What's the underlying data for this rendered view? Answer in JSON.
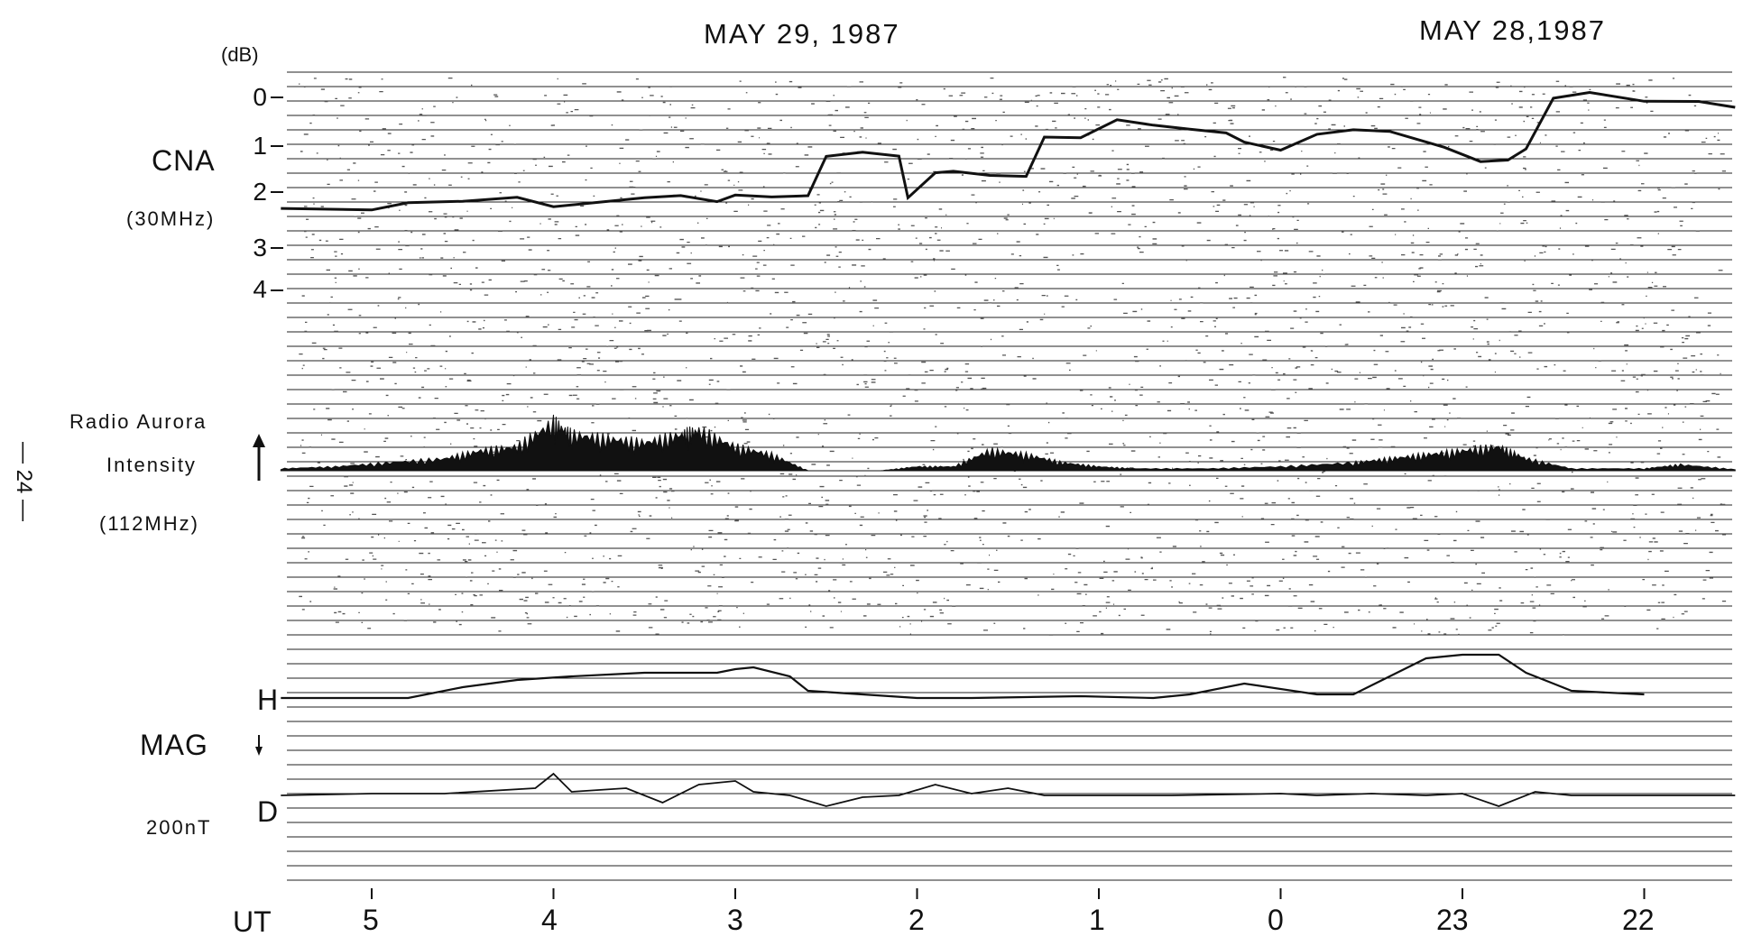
{
  "chart_data": {
    "type": "line",
    "dates": [
      "MAY 29, 1987",
      "MAY 28,1987"
    ],
    "page_number": "— 24 —",
    "x_axis": {
      "label": "UT",
      "ticks": [
        "5",
        "4",
        "3",
        "2",
        "1",
        "0",
        "23",
        "22"
      ],
      "direction": "time decreasing to the right"
    },
    "cna_panel": {
      "label": "CNA",
      "freq": "(30MHz)",
      "unit": "(dB)",
      "y_ticks": [
        "0",
        "1",
        "2",
        "3",
        "4"
      ],
      "ylim": [
        0,
        4
      ],
      "inverted": true,
      "series": {
        "x": [
          5.5,
          5.0,
          4.8,
          4.5,
          4.2,
          4.0,
          3.8,
          3.5,
          3.3,
          3.1,
          3.0,
          2.8,
          2.6,
          2.5,
          2.3,
          2.1,
          2.05,
          1.9,
          1.8,
          1.6,
          1.4,
          1.3,
          1.1,
          0.9,
          0.7,
          0.5,
          0.3,
          0.2,
          0.0,
          -0.2,
          -0.4,
          -0.6,
          -0.9,
          -1.1,
          -1.25,
          -1.35,
          -1.5,
          -1.7,
          -2.0,
          -2.3,
          -2.5
        ],
        "y": [
          2.3,
          2.3,
          2.15,
          2.15,
          2.1,
          2.3,
          2.2,
          2.05,
          2.0,
          2.15,
          2.05,
          2.1,
          2.05,
          1.2,
          1.1,
          1.2,
          2.1,
          1.6,
          1.55,
          1.6,
          1.6,
          0.8,
          0.85,
          0.5,
          0.6,
          0.65,
          0.7,
          0.9,
          1.1,
          0.8,
          0.7,
          0.7,
          1.0,
          1.3,
          1.3,
          1.1,
          0.05,
          -0.1,
          0.05,
          0.05,
          0.2
        ]
      }
    },
    "aurora_panel": {
      "label_line1": "Radio Aurora",
      "label_line2": "Intensity",
      "freq": "(112MHz)",
      "series": {
        "x": [
          5.5,
          5.2,
          4.9,
          4.6,
          4.4,
          4.2,
          4.0,
          3.9,
          3.7,
          3.5,
          3.3,
          3.2,
          3.0,
          2.8,
          2.6,
          2.4,
          2.2,
          2.0,
          1.8,
          1.6,
          1.4,
          1.2,
          1.0,
          0.8,
          0.4,
          0.0,
          -0.4,
          -0.6,
          -0.8,
          -1.0,
          -1.2,
          -1.35,
          -1.6,
          -2.0,
          -2.2,
          -2.5
        ],
        "intensity": [
          0.5,
          1,
          2,
          3,
          5,
          6,
          12,
          9,
          8,
          7,
          9,
          10,
          6,
          4,
          0,
          0,
          0,
          1,
          1,
          5,
          4,
          2,
          1,
          0.5,
          0.5,
          1,
          2,
          3,
          4,
          5,
          6,
          3,
          0.5,
          0.5,
          1.5,
          0.3
        ]
      }
    },
    "mag_panel": {
      "label": "MAG",
      "scale": "200nT",
      "h_label": "H",
      "d_label": "D",
      "h_series": {
        "x": [
          5.5,
          4.8,
          4.5,
          4.2,
          3.9,
          3.5,
          3.1,
          3.0,
          2.9,
          2.7,
          2.6,
          2.0,
          1.7,
          1.1,
          0.7,
          0.5,
          0.2,
          -0.2,
          -0.4,
          -0.6,
          -0.8,
          -1.0,
          -1.2,
          -1.35,
          -1.5,
          -1.6,
          -2.0
        ],
        "nt": [
          0,
          0,
          30,
          50,
          60,
          70,
          70,
          80,
          85,
          60,
          20,
          0,
          0,
          5,
          0,
          10,
          40,
          10,
          10,
          60,
          110,
          120,
          120,
          70,
          40,
          20,
          10
        ]
      },
      "d_series": {
        "x": [
          5.5,
          5.0,
          4.6,
          4.1,
          4.0,
          3.9,
          3.6,
          3.4,
          3.2,
          3.0,
          2.9,
          2.7,
          2.5,
          2.3,
          2.1,
          1.9,
          1.7,
          1.5,
          1.3,
          1.0,
          0.6,
          0.0,
          -0.2,
          -0.5,
          -0.8,
          -1.0,
          -1.2,
          -1.4,
          -1.6,
          -2.5
        ],
        "nt": [
          0,
          5,
          5,
          20,
          60,
          10,
          20,
          -20,
          30,
          40,
          10,
          0,
          -30,
          -5,
          0,
          30,
          5,
          20,
          0,
          0,
          0,
          5,
          0,
          5,
          0,
          5,
          -30,
          10,
          0,
          0
        ]
      }
    }
  }
}
